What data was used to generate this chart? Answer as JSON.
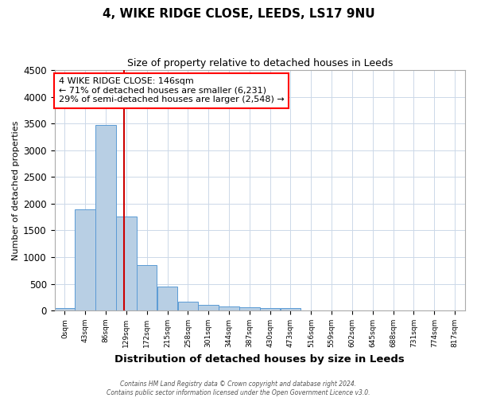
{
  "title1": "4, WIKE RIDGE CLOSE, LEEDS, LS17 9NU",
  "title2": "Size of property relative to detached houses in Leeds",
  "xlabel": "Distribution of detached houses by size in Leeds",
  "ylabel": "Number of detached properties",
  "annotation_line1": "4 WIKE RIDGE CLOSE: 146sqm",
  "annotation_line2": "← 71% of detached houses are smaller (6,231)",
  "annotation_line3": "29% of semi-detached houses are larger (2,548) →",
  "red_line_x": 146,
  "bin_edges": [
    0,
    43,
    86,
    129,
    172,
    215,
    258,
    301,
    344,
    387,
    430,
    473,
    516,
    559,
    602,
    645,
    688,
    731,
    774,
    817,
    860
  ],
  "bar_heights": [
    50,
    1900,
    3480,
    1760,
    850,
    450,
    160,
    110,
    80,
    55,
    40,
    40,
    0,
    0,
    0,
    0,
    0,
    0,
    0,
    0
  ],
  "bar_color": "#b8cfe4",
  "bar_edge_color": "#5b9bd5",
  "red_line_color": "#cc0000",
  "background_color": "#ffffff",
  "grid_color": "#ccd8e8",
  "ylim": [
    0,
    4500
  ],
  "yticks": [
    0,
    500,
    1000,
    1500,
    2000,
    2500,
    3000,
    3500,
    4000,
    4500
  ],
  "footer1": "Contains HM Land Registry data © Crown copyright and database right 2024.",
  "footer2": "Contains public sector information licensed under the Open Government Licence v3.0."
}
